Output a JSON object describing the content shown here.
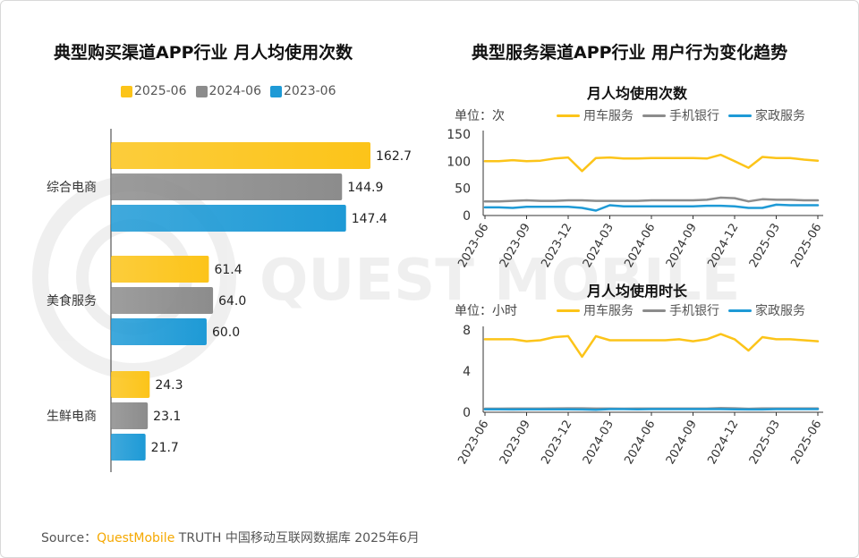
{
  "titles": {
    "left": "典型购买渠道APP行业 月人均使用次数",
    "right": "典型服务渠道APP行业 用户行为变化趋势"
  },
  "source": {
    "prefix": "Source：",
    "brand": "QuestMobile",
    "rest": "TRUTH 中国移动互联网数据库 2025年6月"
  },
  "colors": {
    "yellow": "#fcc419",
    "gray": "#8c8c8c",
    "blue": "#1e9ad6"
  },
  "chart_data": [
    {
      "type": "bar",
      "orientation": "horizontal",
      "title": "典型购买渠道APP行业 月人均使用次数",
      "categories": [
        "综合电商",
        "美食服务",
        "生鲜电商"
      ],
      "series": [
        {
          "name": "2025-06",
          "color": "#fcc419",
          "values": [
            162.7,
            61.4,
            24.3
          ]
        },
        {
          "name": "2024-06",
          "color": "#8c8c8c",
          "values": [
            144.9,
            64.0,
            23.1
          ]
        },
        {
          "name": "2023-06",
          "color": "#1e9ad6",
          "values": [
            147.4,
            60.0,
            21.7
          ]
        }
      ],
      "data_labels": [
        [
          "162.7",
          "61.4",
          "24.3"
        ],
        [
          "144.9",
          "64.0",
          "23.1"
        ],
        [
          "147.4",
          "60.0",
          "21.7"
        ]
      ],
      "xlim": [
        0,
        175
      ],
      "legend": "top"
    },
    {
      "type": "line",
      "title": "月人均使用次数",
      "unit": "单位：次",
      "x": [
        "2023-06",
        "2023-07",
        "2023-08",
        "2023-09",
        "2023-10",
        "2023-11",
        "2023-12",
        "2024-01",
        "2024-02",
        "2024-03",
        "2024-04",
        "2024-05",
        "2024-06",
        "2024-07",
        "2024-08",
        "2024-09",
        "2024-10",
        "2024-11",
        "2024-12",
        "2025-01",
        "2025-02",
        "2025-03",
        "2025-04",
        "2025-05",
        "2025-06"
      ],
      "x_tick_labels": [
        "2023-06",
        "2023-09",
        "2023-12",
        "2024-03",
        "2024-06",
        "2024-09",
        "2024-12",
        "2025-03",
        "2025-06"
      ],
      "y_ticks": [
        "0",
        "50",
        "100",
        "150"
      ],
      "ylim": [
        0,
        150
      ],
      "series": [
        {
          "name": "用车服务",
          "color": "#fcc419",
          "values": [
            100,
            100,
            102,
            100,
            101,
            105,
            107,
            82,
            106,
            107,
            105,
            105,
            106,
            106,
            106,
            106,
            105,
            112,
            100,
            88,
            108,
            106,
            106,
            103,
            101
          ]
        },
        {
          "name": "手机银行",
          "color": "#8c8c8c",
          "values": [
            26,
            26,
            27,
            28,
            27,
            27,
            28,
            28,
            27,
            27,
            27,
            27,
            28,
            28,
            28,
            28,
            29,
            33,
            32,
            26,
            30,
            29,
            29,
            28,
            28
          ]
        },
        {
          "name": "家政服务",
          "color": "#1e9ad6",
          "values": [
            15,
            15,
            14,
            16,
            16,
            16,
            16,
            14,
            9,
            19,
            17,
            17,
            17,
            17,
            17,
            17,
            18,
            18,
            17,
            14,
            14,
            20,
            19,
            19,
            19
          ]
        }
      ],
      "legend": "top-right"
    },
    {
      "type": "line",
      "title": "月人均使用时长",
      "unit": "单位：小时",
      "x": [
        "2023-06",
        "2023-07",
        "2023-08",
        "2023-09",
        "2023-10",
        "2023-11",
        "2023-12",
        "2024-01",
        "2024-02",
        "2024-03",
        "2024-04",
        "2024-05",
        "2024-06",
        "2024-07",
        "2024-08",
        "2024-09",
        "2024-10",
        "2024-11",
        "2024-12",
        "2025-01",
        "2025-02",
        "2025-03",
        "2025-04",
        "2025-05",
        "2025-06"
      ],
      "x_tick_labels": [
        "2023-06",
        "2023-09",
        "2023-12",
        "2024-03",
        "2024-06",
        "2024-09",
        "2024-12",
        "2025-03",
        "2025-06"
      ],
      "y_ticks": [
        "0",
        "4",
        "8"
      ],
      "ylim": [
        0,
        8
      ],
      "series": [
        {
          "name": "用车服务",
          "color": "#fcc419",
          "values": [
            7.1,
            7.1,
            7.1,
            6.9,
            7.0,
            7.3,
            7.4,
            5.4,
            7.4,
            7.0,
            7.0,
            7.0,
            7.0,
            7.0,
            7.1,
            6.9,
            7.1,
            7.6,
            7.1,
            6.0,
            7.3,
            7.1,
            7.1,
            7.0,
            6.9
          ]
        },
        {
          "name": "手机银行",
          "color": "#8c8c8c",
          "values": [
            0.35,
            0.35,
            0.36,
            0.36,
            0.36,
            0.37,
            0.38,
            0.38,
            0.36,
            0.36,
            0.35,
            0.36,
            0.36,
            0.36,
            0.36,
            0.36,
            0.36,
            0.4,
            0.38,
            0.34,
            0.37,
            0.37,
            0.37,
            0.37,
            0.37
          ]
        },
        {
          "name": "家政服务",
          "color": "#1e9ad6",
          "values": [
            0.28,
            0.28,
            0.27,
            0.29,
            0.29,
            0.29,
            0.29,
            0.27,
            0.24,
            0.3,
            0.3,
            0.29,
            0.3,
            0.3,
            0.3,
            0.3,
            0.3,
            0.3,
            0.29,
            0.27,
            0.27,
            0.3,
            0.3,
            0.3,
            0.3
          ]
        }
      ],
      "legend": "top-right"
    }
  ]
}
